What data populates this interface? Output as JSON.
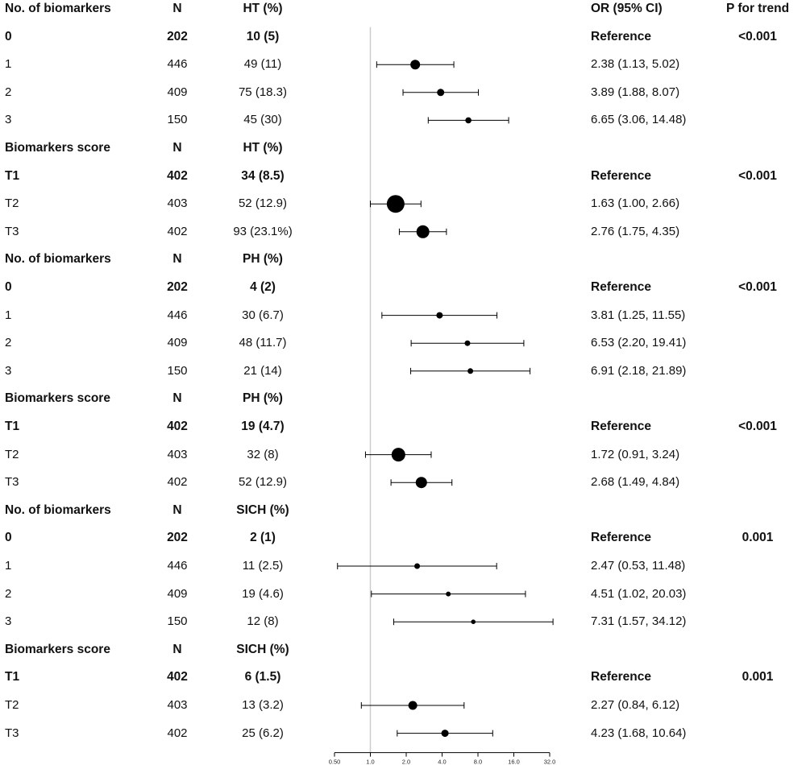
{
  "chart_data": {
    "type": "forest",
    "x_scale": "log2",
    "xlim": [
      0.5,
      32
    ],
    "x_ticks": [
      "0.50",
      "1.0",
      "2.0",
      "4.0",
      "8.0",
      "16.0",
      "32.0"
    ],
    "x_tick_values": [
      0.5,
      1,
      2,
      4,
      8,
      16,
      32
    ],
    "reference_line": 1,
    "columns": {
      "label": "No. of biomarkers",
      "n": "N",
      "rate": "HT (%)",
      "or": "OR (95% CI)",
      "p": "P for trend"
    },
    "rows": [
      {
        "kind": "header",
        "label": "No. of biomarkers",
        "n": "N",
        "rate": "HT (%)",
        "or": "OR (95% CI)",
        "p": "P for trend"
      },
      {
        "kind": "ref",
        "label": "0",
        "n": "202",
        "rate": "10 (5)",
        "or": "Reference",
        "p": "<0.001"
      },
      {
        "kind": "data",
        "label": "1",
        "n": "446",
        "rate": "49 (11)",
        "or": "2.38 (1.13, 5.02)",
        "p": "",
        "est": 2.38,
        "lo": 1.13,
        "hi": 5.02,
        "w": 6
      },
      {
        "kind": "data",
        "label": "2",
        "n": "409",
        "rate": "75 (18.3)",
        "or": "3.89 (1.88, 8.07)",
        "p": "",
        "est": 3.89,
        "lo": 1.88,
        "hi": 8.07,
        "w": 4.5
      },
      {
        "kind": "data",
        "label": "3",
        "n": "150",
        "rate": "45 (30)",
        "or": "6.65 (3.06, 14.48)",
        "p": "",
        "est": 6.65,
        "lo": 3.06,
        "hi": 14.48,
        "w": 3.8
      },
      {
        "kind": "header",
        "label": "Biomarkers score",
        "n": "N",
        "rate": "HT (%)",
        "or": "",
        "p": ""
      },
      {
        "kind": "ref",
        "label": "T1",
        "n": "402",
        "rate": "34 (8.5)",
        "or": "Reference",
        "p": "<0.001"
      },
      {
        "kind": "data",
        "label": "T2",
        "n": "403",
        "rate": "52 (12.9)",
        "or": "1.63 (1.00, 2.66)",
        "p": "",
        "est": 1.63,
        "lo": 1.0,
        "hi": 2.66,
        "w": 11
      },
      {
        "kind": "data",
        "label": "T3",
        "n": "402",
        "rate": "93 (23.1%)",
        "or": "2.76 (1.75, 4.35)",
        "p": "",
        "est": 2.76,
        "lo": 1.75,
        "hi": 4.35,
        "w": 8
      },
      {
        "kind": "header",
        "label": "No. of biomarkers",
        "n": "N",
        "rate": "PH (%)",
        "or": "",
        "p": ""
      },
      {
        "kind": "ref",
        "label": "0",
        "n": "202",
        "rate": "4 (2)",
        "or": "Reference",
        "p": "<0.001"
      },
      {
        "kind": "data",
        "label": "1",
        "n": "446",
        "rate": "30 (6.7)",
        "or": "3.81 (1.25, 11.55)",
        "p": "",
        "est": 3.81,
        "lo": 1.25,
        "hi": 11.55,
        "w": 4
      },
      {
        "kind": "data",
        "label": "2",
        "n": "409",
        "rate": "48 (11.7)",
        "or": "6.53 (2.20, 19.41)",
        "p": "",
        "est": 6.53,
        "lo": 2.2,
        "hi": 19.41,
        "w": 3.5
      },
      {
        "kind": "data",
        "label": "3",
        "n": "150",
        "rate": "21 (14)",
        "or": "6.91 (2.18, 21.89)",
        "p": "",
        "est": 6.91,
        "lo": 2.18,
        "hi": 21.89,
        "w": 3.5
      },
      {
        "kind": "header",
        "label": "Biomarkers score",
        "n": "N",
        "rate": "PH (%)",
        "or": "",
        "p": ""
      },
      {
        "kind": "ref",
        "label": "T1",
        "n": "402",
        "rate": "19 (4.7)",
        "or": "Reference",
        "p": "<0.001"
      },
      {
        "kind": "data",
        "label": "T2",
        "n": "403",
        "rate": "32 (8)",
        "or": "1.72 (0.91, 3.24)",
        "p": "",
        "est": 1.72,
        "lo": 0.91,
        "hi": 3.24,
        "w": 8.5
      },
      {
        "kind": "data",
        "label": "T3",
        "n": "402",
        "rate": "52 (12.9)",
        "or": "2.68 (1.49, 4.84)",
        "p": "",
        "est": 2.68,
        "lo": 1.49,
        "hi": 4.84,
        "w": 7
      },
      {
        "kind": "header",
        "label": "No. of biomarkers",
        "n": "N",
        "rate": "SICH (%)",
        "or": "",
        "p": ""
      },
      {
        "kind": "ref",
        "label": "0",
        "n": "202",
        "rate": "2 (1)",
        "or": "Reference",
        "p": "0.001"
      },
      {
        "kind": "data",
        "label": "1",
        "n": "446",
        "rate": "11 (2.5)",
        "or": "2.47 (0.53, 11.48)",
        "p": "",
        "est": 2.47,
        "lo": 0.53,
        "hi": 11.48,
        "w": 3.5
      },
      {
        "kind": "data",
        "label": "2",
        "n": "409",
        "rate": "19 (4.6)",
        "or": "4.51 (1.02, 20.03)",
        "p": "",
        "est": 4.51,
        "lo": 1.02,
        "hi": 20.03,
        "w": 3
      },
      {
        "kind": "data",
        "label": "3",
        "n": "150",
        "rate": "12 (8)",
        "or": "7.31 (1.57, 34.12)",
        "p": "",
        "est": 7.31,
        "lo": 1.57,
        "hi": 34.12,
        "w": 2.8
      },
      {
        "kind": "header",
        "label": "Biomarkers score",
        "n": "N",
        "rate": "SICH (%)",
        "or": "",
        "p": ""
      },
      {
        "kind": "ref",
        "label": "T1",
        "n": "402",
        "rate": "6 (1.5)",
        "or": "Reference",
        "p": "0.001"
      },
      {
        "kind": "data",
        "label": "T2",
        "n": "403",
        "rate": "13 (3.2)",
        "or": "2.27 (0.84, 6.12)",
        "p": "",
        "est": 2.27,
        "lo": 0.84,
        "hi": 6.12,
        "w": 5.5
      },
      {
        "kind": "data",
        "label": "T3",
        "n": "402",
        "rate": "25 (6.2)",
        "or": "4.23 (1.68, 10.64)",
        "p": "",
        "est": 4.23,
        "lo": 1.68,
        "hi": 10.64,
        "w": 4.5
      }
    ]
  },
  "colors": {
    "text": "#111111",
    "marker": "#000000",
    "reference_line": "#cccccc",
    "axis": "#000000"
  }
}
